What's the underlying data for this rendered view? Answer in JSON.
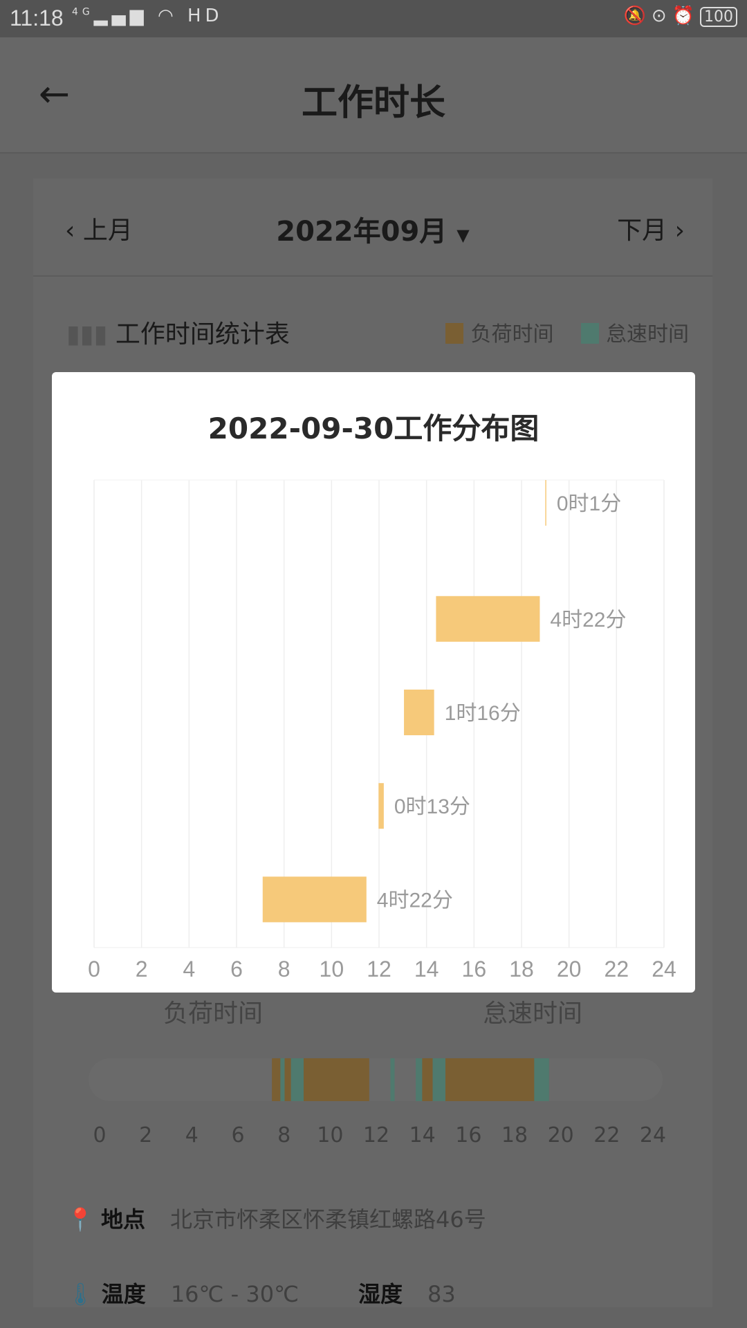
{
  "status_bar": {
    "time": "11:18",
    "network": "4G",
    "icons": [
      "signal-icon",
      "wifi-icon",
      "hd-icon",
      "vibrate-icon",
      "rotation-lock-icon",
      "alarm-icon"
    ],
    "battery": "100"
  },
  "header": {
    "title": "工作时长",
    "back_icon": "arrow-left-icon"
  },
  "month_nav": {
    "prev": "上月",
    "current": "2022年09月",
    "next": "下月"
  },
  "stats": {
    "title": "工作时间统计表",
    "legend": [
      {
        "label": "负荷时间",
        "color": "#7a5f33"
      },
      {
        "label": "怠速时间",
        "color": "#4f7a6e"
      }
    ]
  },
  "timeline": {
    "labels": [
      "负荷时间",
      "怠速时间"
    ],
    "ticks": [
      "0",
      "2",
      "4",
      "6",
      "8",
      "10",
      "12",
      "14",
      "16",
      "18",
      "20",
      "22",
      "24"
    ],
    "load_intervals": [
      [
        7.1,
        7.5
      ],
      [
        7.7,
        8.0
      ],
      [
        8.6,
        11.7
      ],
      [
        14.2,
        14.7
      ],
      [
        15.3,
        19.5
      ]
    ],
    "idle_intervals": [
      [
        7.5,
        7.7
      ],
      [
        8.0,
        8.6
      ],
      [
        12.7,
        12.9
      ],
      [
        13.9,
        14.2
      ],
      [
        14.7,
        15.3
      ],
      [
        19.5,
        20.2
      ]
    ]
  },
  "location": {
    "label": "地点",
    "value": "北京市怀柔区怀柔镇红螺路46号"
  },
  "weather": {
    "temp_label": "温度",
    "temp_value": "16℃ - 30℃",
    "humidity_label": "湿度",
    "humidity_value": "83"
  },
  "modal": {
    "title": "2022-09-30工作分布图",
    "chart_data": {
      "type": "bar",
      "orientation": "horizontal-range",
      "xlim": [
        0,
        24
      ],
      "x_ticks": [
        "0",
        "2",
        "4",
        "6",
        "8",
        "10",
        "12",
        "14",
        "16",
        "18",
        "20",
        "22",
        "24"
      ],
      "grid": true,
      "color": "#f6c97a",
      "bars": [
        {
          "start": 19.0,
          "end": 19.02,
          "label": "0时1分"
        },
        {
          "start": 14.4,
          "end": 18.77,
          "label": "4时22分"
        },
        {
          "start": 13.05,
          "end": 14.32,
          "label": "1时16分"
        },
        {
          "start": 11.98,
          "end": 12.2,
          "label": "0时13分"
        },
        {
          "start": 7.1,
          "end": 11.47,
          "label": "4时22分"
        }
      ]
    }
  }
}
